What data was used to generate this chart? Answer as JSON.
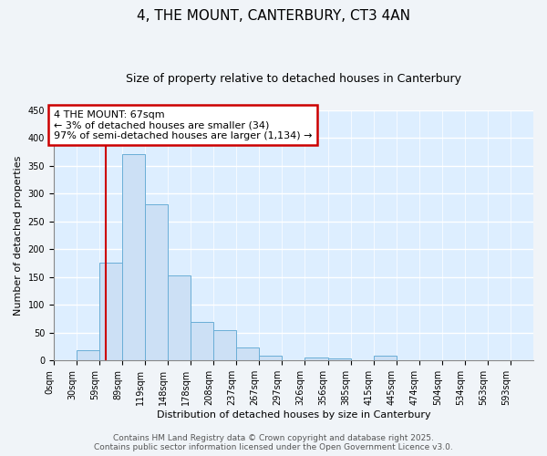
{
  "title": "4, THE MOUNT, CANTERBURY, CT3 4AN",
  "subtitle": "Size of property relative to detached houses in Canterbury",
  "xlabel": "Distribution of detached houses by size in Canterbury",
  "ylabel": "Number of detached properties",
  "bin_labels": [
    "0sqm",
    "30sqm",
    "59sqm",
    "89sqm",
    "119sqm",
    "148sqm",
    "178sqm",
    "208sqm",
    "237sqm",
    "267sqm",
    "297sqm",
    "326sqm",
    "356sqm",
    "385sqm",
    "415sqm",
    "445sqm",
    "474sqm",
    "504sqm",
    "534sqm",
    "563sqm",
    "593sqm"
  ],
  "bar_heights": [
    0,
    18,
    175,
    370,
    280,
    153,
    70,
    55,
    23,
    8,
    0,
    6,
    4,
    0,
    8,
    0,
    0,
    0,
    0,
    0,
    0
  ],
  "bar_color": "#cce0f5",
  "bar_edge_color": "#6aaed6",
  "plot_bg_color": "#ddeeff",
  "fig_bg_color": "#f0f4f8",
  "grid_color": "#ffffff",
  "vline_color": "#cc0000",
  "annotation_text": "4 THE MOUNT: 67sqm\n← 3% of detached houses are smaller (34)\n97% of semi-detached houses are larger (1,134) →",
  "annotation_box_color": "#ffffff",
  "annotation_box_edge": "#cc0000",
  "ylim": [
    0,
    450
  ],
  "yticks": [
    0,
    50,
    100,
    150,
    200,
    250,
    300,
    350,
    400,
    450
  ],
  "footer1": "Contains HM Land Registry data © Crown copyright and database right 2025.",
  "footer2": "Contains public sector information licensed under the Open Government Licence v3.0.",
  "title_fontsize": 11,
  "subtitle_fontsize": 9,
  "label_fontsize": 8,
  "tick_fontsize": 7,
  "annotation_fontsize": 8,
  "footer_fontsize": 6.5
}
